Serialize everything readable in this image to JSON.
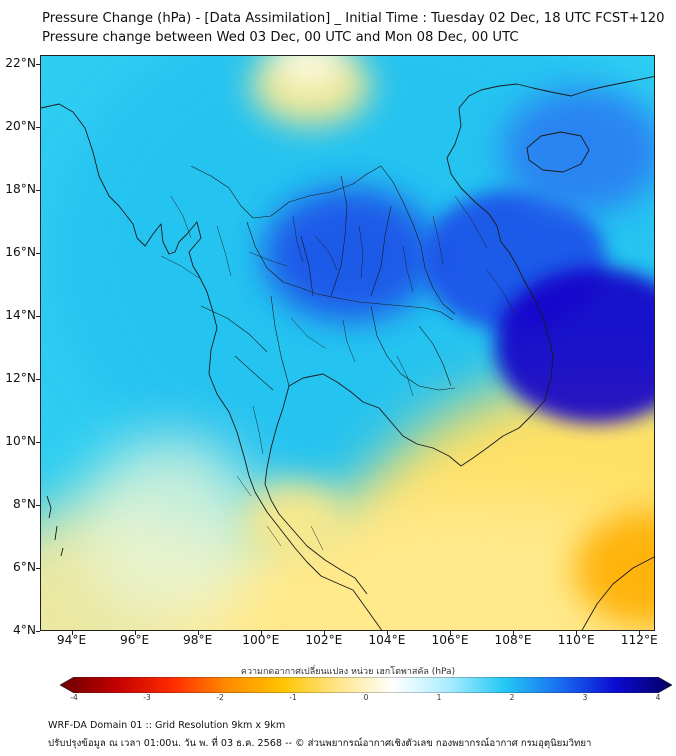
{
  "header": {
    "title_line1": "Pressure Change (hPa) - [Data Assimilation] _ Initial Time : Tuesday 02 Dec, 18 UTC FCST+120",
    "title_line2": "Pressure change between Wed 03 Dec, 00 UTC and Mon 08 Dec, 00 UTC"
  },
  "map": {
    "region": "Mainland Southeast Asia",
    "lat_range": [
      4,
      22.3
    ],
    "lon_range": [
      93,
      112.5
    ],
    "lat_labels": [
      "22°N",
      "20°N",
      "18°N",
      "16°N",
      "14°N",
      "12°N",
      "10°N",
      "8°N",
      "6°N",
      "4°N"
    ],
    "lon_labels": [
      "94°E",
      "96°E",
      "98°E",
      "100°E",
      "102°E",
      "104°E",
      "106°E",
      "108°E",
      "110°E",
      "112°E"
    ],
    "lat_values": [
      22,
      20,
      18,
      16,
      14,
      12,
      10,
      8,
      6,
      4
    ],
    "lon_values": [
      94,
      96,
      98,
      100,
      102,
      104,
      106,
      108,
      110,
      112
    ],
    "field": "pressure change",
    "units": "hPa",
    "features": [
      {
        "name": "strong rise center (Thailand/Cambodia interior)",
        "lat": 16.0,
        "lon": 102.8,
        "value": 2.9
      },
      {
        "name": "strong rise center (central Vietnam coast)",
        "lat": 15.8,
        "lon": 108.0,
        "value": 3.2
      },
      {
        "name": "strong rise center (South China Sea)",
        "lat": 13.1,
        "lon": 110.6,
        "value": 3.7
      },
      {
        "name": "rise center (Hainan region)",
        "lat": 19.3,
        "lon": 110.2,
        "value": 2.6
      },
      {
        "name": "weak change (northern Myanmar)",
        "lat": 22.1,
        "lon": 101.5,
        "value": 0.1
      },
      {
        "name": "slight fall (Gulf of Thailand south)",
        "lat": 7.6,
        "lon": 101.0,
        "value": -0.9
      },
      {
        "name": "fall center (southeast corner)",
        "lat": 6.0,
        "lon": 112.3,
        "value": -2.3
      }
    ]
  },
  "colorbar": {
    "label": "ความกดอากาศเปลี่ยนแปลง หน่วย เฮกโตพาสคัล (hPa)",
    "min": -4,
    "max": 4,
    "ticks": [
      "-4",
      "-3",
      "-2",
      "-1",
      "0",
      "1",
      "2",
      "3",
      "4"
    ],
    "colors": [
      "#6a0000",
      "#c00000",
      "#ff2a00",
      "#ff8a00",
      "#ffc400",
      "#ffe68a",
      "#ffffff",
      "#a8ecff",
      "#23c8f5",
      "#1a6cf0",
      "#0a0ad0",
      "#050060"
    ]
  },
  "footer": {
    "line1": "WRF-DA Domain 01 :: Grid Resolution 9km x 9km",
    "line2": "ปรับปรุงข้อมูล ณ เวลา 01:00น. วัน พ. ที่ 03 ธ.ค. 2568 -- © ส่วนพยากรณ์อากาศเชิงตัวเลข กองพยากรณ์อากาศ กรมอุตุนิยมวิทยา"
  }
}
